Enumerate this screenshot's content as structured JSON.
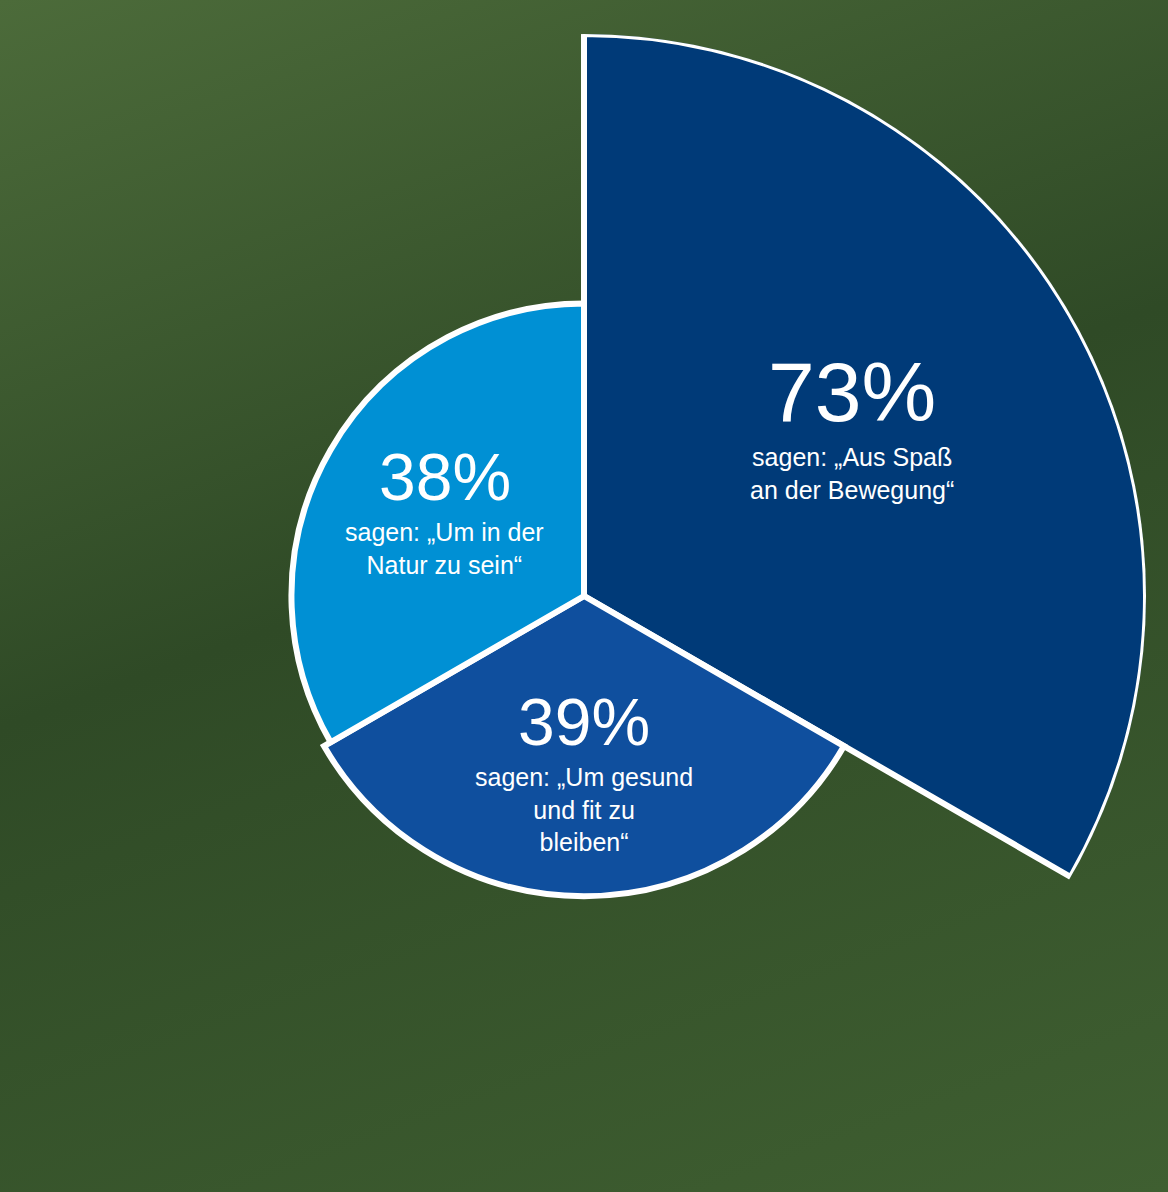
{
  "chart_data": {
    "type": "polar_bar",
    "categories": [
      "sagen: „Aus Spaß an der Bewegung“",
      "sagen: „Um gesund und fit zu bleiben“",
      "sagen: „Um in der Natur zu sein“"
    ],
    "values": [
      73,
      39,
      38
    ],
    "value_labels": [
      "73%",
      "39%",
      "38%"
    ],
    "colors": [
      "#003a78",
      "#0f4f9e",
      "#0090d4"
    ],
    "data_labels": true,
    "tick_labels": false
  }
}
